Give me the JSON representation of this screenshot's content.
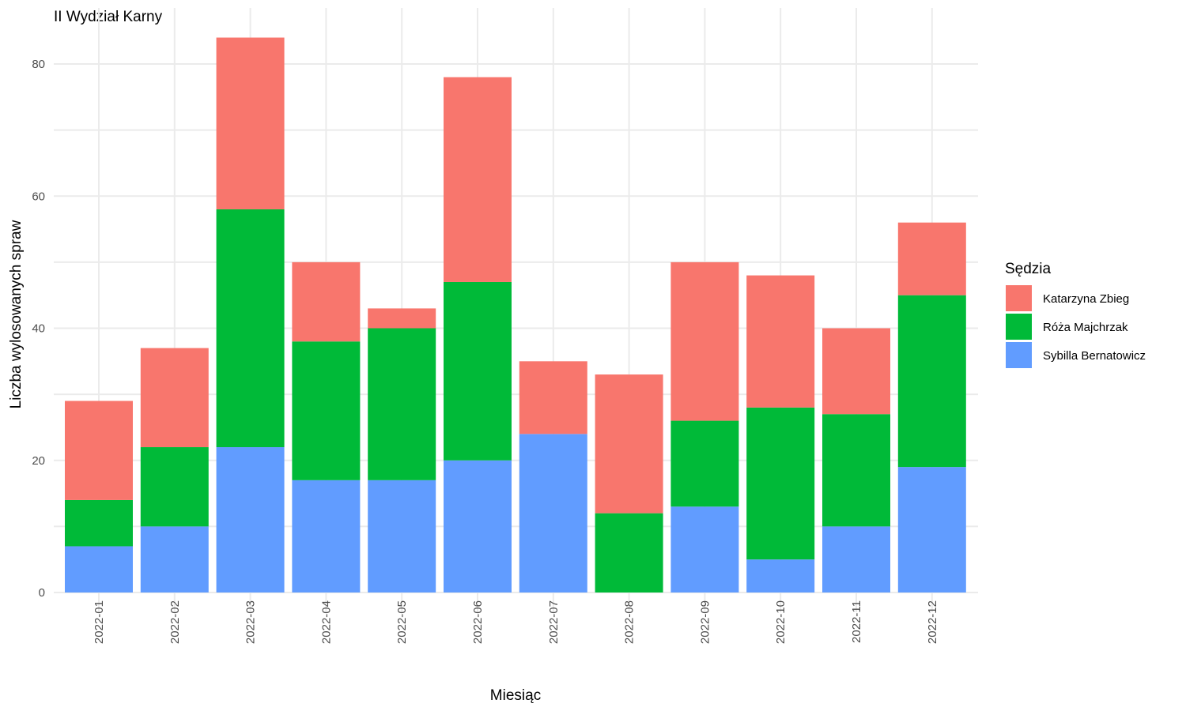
{
  "chart_data": {
    "type": "bar",
    "stacked": true,
    "title": "II Wydział Karny",
    "xlabel": "Miesiąc",
    "ylabel": "Liczba wylosowanych spraw",
    "ylim": [
      0,
      88
    ],
    "yticks": [
      0,
      20,
      40,
      60,
      80
    ],
    "grid": true,
    "legend_position": "right",
    "legend_title": "Sędzia",
    "categories": [
      "2022-01",
      "2022-02",
      "2022-03",
      "2022-04",
      "2022-05",
      "2022-06",
      "2022-07",
      "2022-08",
      "2022-09",
      "2022-10",
      "2022-11",
      "2022-12"
    ],
    "series": [
      {
        "name": "Sybilla Bernatowicz",
        "color": "#619CFF",
        "values": [
          7,
          10,
          22,
          17,
          17,
          20,
          24,
          0,
          13,
          5,
          10,
          19
        ]
      },
      {
        "name": "Róża Majchrzak",
        "color": "#00BA38",
        "values": [
          7,
          12,
          36,
          21,
          23,
          27,
          0,
          12,
          13,
          23,
          17,
          26
        ]
      },
      {
        "name": "Katarzyna Zbieg",
        "color": "#F8766D",
        "values": [
          15,
          15,
          26,
          12,
          3,
          31,
          11,
          21,
          24,
          20,
          13,
          11
        ]
      }
    ],
    "legend_order": [
      "Katarzyna Zbieg",
      "Róża Majchrzak",
      "Sybilla Bernatowicz"
    ]
  }
}
